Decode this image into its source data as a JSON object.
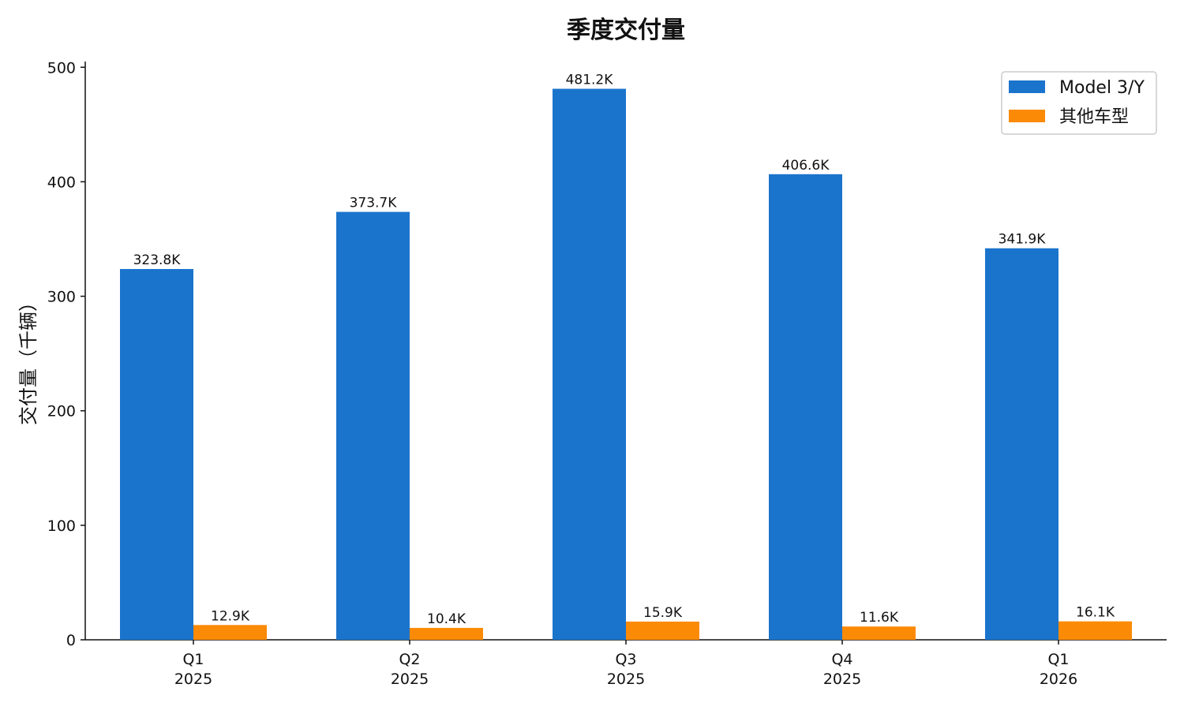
{
  "chart_data": {
    "type": "bar",
    "title": "季度交付量",
    "xlabel": "",
    "ylabel": "交付量（千辆）",
    "ylim": [
      0,
      505
    ],
    "yticks": [
      0,
      100,
      200,
      300,
      400,
      500
    ],
    "grid": false,
    "legend_position": "top-right",
    "categories": [
      {
        "quarter": "Q1",
        "year": "2025"
      },
      {
        "quarter": "Q2",
        "year": "2025"
      },
      {
        "quarter": "Q3",
        "year": "2025"
      },
      {
        "quarter": "Q4",
        "year": "2025"
      },
      {
        "quarter": "Q1",
        "year": "2026"
      }
    ],
    "series": [
      {
        "name": "Model 3/Y",
        "color": "#1b74cc",
        "values": [
          323.8,
          373.7,
          481.2,
          406.6,
          341.9
        ],
        "labels": [
          "323.8K",
          "373.7K",
          "481.2K",
          "406.6K",
          "341.9K"
        ]
      },
      {
        "name": "其他车型",
        "color": "#fb8a07",
        "values": [
          12.9,
          10.4,
          15.9,
          11.6,
          16.1
        ],
        "labels": [
          "12.9K",
          "10.4K",
          "15.9K",
          "11.6K",
          "16.1K"
        ]
      }
    ]
  }
}
